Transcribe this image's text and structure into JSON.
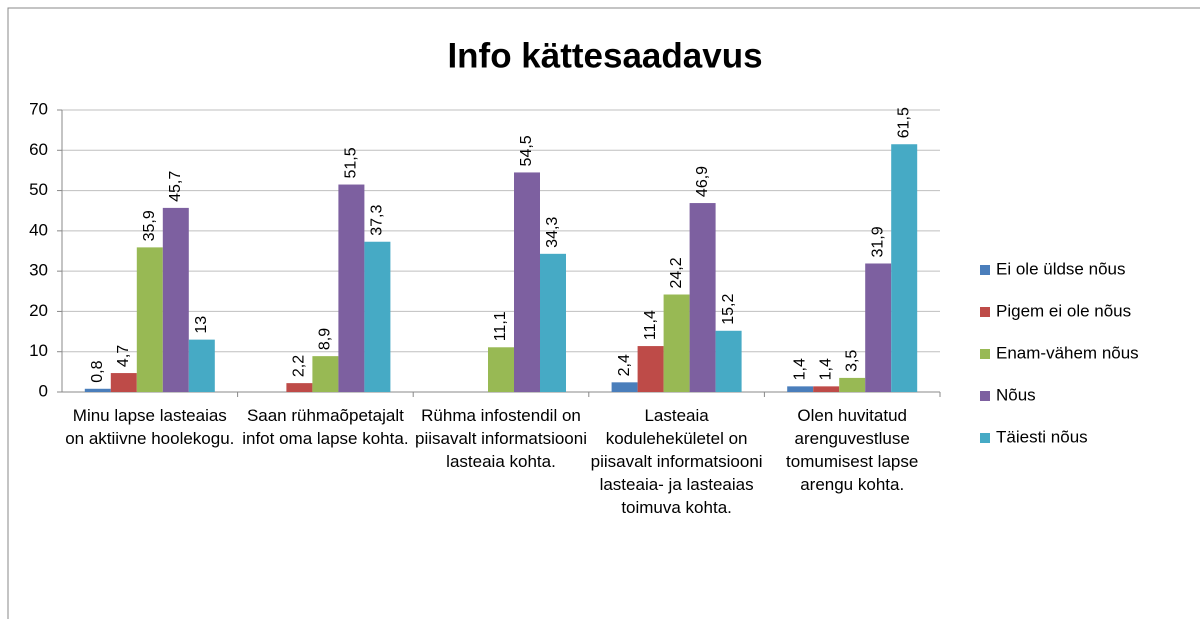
{
  "chart_data": {
    "type": "bar",
    "title": "Info kättesaadavus",
    "categories": [
      "Minu lapse lasteaias on aktiivne hoolekogu.",
      "Saan rühmaõpetajalt infot oma lapse kohta.",
      "Rühma infostendil on piisavalt informatsiooni lasteaia kohta.",
      "Lasteaia kodulehekületel on piisavalt informatsiooni lasteaia- ja lasteaias toimuva kohta.",
      "Olen huvitatud arenguvestluse tomumisest lapse arengu kohta."
    ],
    "series": [
      {
        "name": "Ei ole üldse nõus",
        "color": "#4a7ebb",
        "values": [
          0.8,
          null,
          null,
          2.4,
          1.4
        ],
        "value_labels": [
          "0,8",
          null,
          null,
          "2,4",
          "1,4"
        ]
      },
      {
        "name": "Pigem ei ole nõus",
        "color": "#be4b48",
        "values": [
          4.7,
          2.2,
          null,
          11.4,
          1.4
        ],
        "value_labels": [
          "4,7",
          "2,2",
          null,
          "11,4",
          "1,4"
        ]
      },
      {
        "name": "Enam-vähem nõus",
        "color": "#98b954",
        "values": [
          35.9,
          8.9,
          11.1,
          24.2,
          3.5
        ],
        "value_labels": [
          "35,9",
          "8,9",
          "11,1",
          "24,2",
          "3,5"
        ]
      },
      {
        "name": "Nõus",
        "color": "#7d60a0",
        "values": [
          45.7,
          51.5,
          54.5,
          46.9,
          31.9
        ],
        "value_labels": [
          "45,7",
          "51,5",
          "54,5",
          "46,9",
          "31,9"
        ]
      },
      {
        "name": "Täiesti nõus",
        "color": "#46aac5",
        "values": [
          13,
          37.3,
          34.3,
          15.2,
          61.5
        ],
        "value_labels": [
          "13",
          "37,3",
          "34,3",
          "15,2",
          "61,5"
        ]
      }
    ],
    "ylim": [
      0,
      70
    ],
    "yticks": [
      0,
      10,
      20,
      30,
      40,
      50,
      60,
      70
    ],
    "grid": true,
    "legend": "right"
  }
}
